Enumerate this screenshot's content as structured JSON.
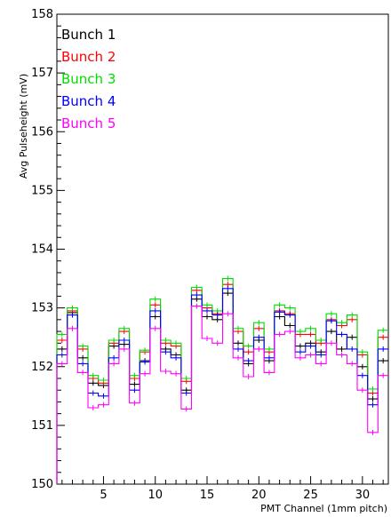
{
  "chart_data": {
    "type": "line",
    "title": "",
    "xlabel": "PMT Channel (1mm pitch)",
    "ylabel": "Avg Pulseheight (mV)",
    "xlim": [
      0.5,
      32.5
    ],
    "ylim": [
      150,
      158
    ],
    "x_ticks": [
      5,
      10,
      15,
      20,
      25,
      30
    ],
    "y_ticks": [
      150,
      151,
      152,
      153,
      154,
      155,
      156,
      157,
      158
    ],
    "grid": false,
    "legend_position": "top-left",
    "channels": [
      1,
      2,
      3,
      4,
      5,
      6,
      7,
      8,
      9,
      10,
      11,
      12,
      13,
      14,
      15,
      16,
      17,
      18,
      19,
      20,
      21,
      22,
      23,
      24,
      25,
      26,
      27,
      28,
      29,
      30,
      31,
      32
    ],
    "series": [
      {
        "name": "Bunch 1",
        "color": "#000000",
        "values": [
          152.3,
          152.92,
          152.15,
          151.72,
          151.68,
          152.35,
          152.38,
          151.7,
          152.1,
          152.85,
          152.3,
          152.2,
          151.6,
          153.15,
          152.85,
          152.8,
          153.25,
          152.4,
          152.05,
          152.45,
          152.1,
          152.85,
          152.7,
          152.35,
          152.4,
          152.25,
          152.6,
          152.3,
          152.5,
          152.0,
          151.45,
          152.1
        ]
      },
      {
        "name": "Bunch 2",
        "color": "#ff0000",
        "values": [
          152.45,
          152.95,
          152.3,
          151.8,
          151.72,
          152.4,
          152.6,
          151.8,
          152.25,
          153.05,
          152.4,
          152.35,
          151.75,
          153.3,
          153.0,
          152.9,
          153.4,
          152.6,
          152.25,
          152.65,
          152.25,
          152.95,
          152.9,
          152.55,
          152.55,
          152.4,
          152.8,
          152.7,
          152.8,
          152.2,
          151.55,
          152.5
        ]
      },
      {
        "name": "Bunch 3",
        "color": "#00dd00",
        "values": [
          152.55,
          153.0,
          152.35,
          151.85,
          151.77,
          152.45,
          152.65,
          151.85,
          152.28,
          153.15,
          152.45,
          152.4,
          151.8,
          153.35,
          153.05,
          152.95,
          153.5,
          152.65,
          152.35,
          152.75,
          152.3,
          153.05,
          153.0,
          152.6,
          152.65,
          152.45,
          152.9,
          152.75,
          152.88,
          152.25,
          151.62,
          152.62
        ]
      },
      {
        "name": "Bunch 4",
        "color": "#0000ff",
        "values": [
          152.2,
          152.88,
          152.05,
          151.55,
          151.5,
          152.15,
          152.45,
          151.6,
          152.08,
          152.95,
          152.25,
          152.15,
          151.55,
          153.22,
          152.95,
          152.88,
          153.33,
          152.3,
          152.1,
          152.5,
          152.15,
          152.93,
          152.88,
          152.25,
          152.35,
          152.2,
          152.78,
          152.55,
          152.3,
          151.85,
          151.35,
          152.3
        ]
      },
      {
        "name": "Bunch 5",
        "color": "#ff00ff",
        "values": [
          152.05,
          152.65,
          151.9,
          151.3,
          151.35,
          152.05,
          152.3,
          151.38,
          151.88,
          152.65,
          151.92,
          151.88,
          151.28,
          153.03,
          152.48,
          152.4,
          152.9,
          152.15,
          151.83,
          152.3,
          151.9,
          152.55,
          152.6,
          152.15,
          152.2,
          152.05,
          152.4,
          152.2,
          152.05,
          151.6,
          150.88,
          151.85
        ]
      }
    ]
  }
}
